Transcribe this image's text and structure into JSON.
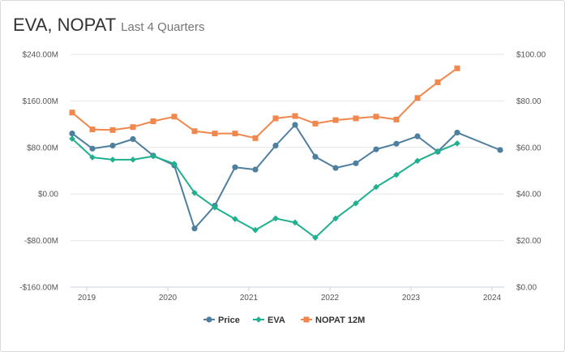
{
  "header": {
    "title": "EVA, NOPAT",
    "subtitle": "Last 4 Quarters"
  },
  "colors": {
    "price": "#4e7f9f",
    "eva": "#1fb08f",
    "nopat": "#f0874d",
    "grid": "#e6e6e6",
    "axis": "#c9d0e0"
  },
  "chart_data": {
    "type": "line",
    "x_axis": {
      "ticks": [
        "2019",
        "2020",
        "2021",
        "2022",
        "2023",
        "2024"
      ],
      "tick_values": [
        2019,
        2020,
        2021,
        2022,
        2023,
        2024
      ],
      "range": [
        2018.8,
        2024.15
      ]
    },
    "y_left": {
      "ticks": [
        "$240.00M",
        "$160.00M",
        "$80.00M",
        "$0.00",
        "-$80.00M",
        "-$160.00M"
      ],
      "tick_values": [
        240,
        160,
        80,
        0,
        -80,
        -160
      ],
      "range": [
        -160,
        240
      ],
      "unit": "$M"
    },
    "y_right": {
      "ticks": [
        "$100.00",
        "$80.00",
        "$60.00",
        "$40.00",
        "$20.00",
        "$0.00"
      ],
      "tick_values": [
        100,
        80,
        60,
        40,
        20,
        0
      ],
      "range": [
        0,
        100
      ]
    },
    "grid": true,
    "legend_position": "bottom-center",
    "series": [
      {
        "name": "Price",
        "key": "price",
        "axis": "right",
        "marker": "circle",
        "x": [
          2018.82,
          2019.07,
          2019.32,
          2019.57,
          2019.82,
          2020.08,
          2020.33,
          2020.58,
          2020.83,
          2021.08,
          2021.33,
          2021.57,
          2021.82,
          2022.07,
          2022.32,
          2022.57,
          2022.82,
          2023.08,
          2023.33,
          2023.57,
          2024.1
        ],
        "values": [
          66.0,
          59.5,
          60.8,
          63.6,
          56.5,
          52.3,
          25.2,
          35.0,
          51.5,
          50.5,
          60.8,
          69.7,
          56.0,
          51.2,
          53.2,
          59.2,
          61.6,
          64.8,
          58.2,
          66.4,
          58.9
        ]
      },
      {
        "name": "EVA",
        "key": "eva",
        "axis": "left",
        "marker": "diamond",
        "x": [
          2018.82,
          2019.07,
          2019.32,
          2019.57,
          2019.82,
          2020.08,
          2020.33,
          2020.58,
          2020.83,
          2021.08,
          2021.33,
          2021.57,
          2021.82,
          2022.07,
          2022.32,
          2022.57,
          2022.82,
          2023.08,
          2023.33,
          2023.57
        ],
        "values": [
          95,
          63,
          59,
          59,
          65,
          52,
          2,
          -23,
          -43,
          -62,
          -42,
          -49,
          -75,
          -42,
          -16,
          12,
          33,
          57,
          73,
          87
        ]
      },
      {
        "name": "NOPAT 12M",
        "key": "nopat",
        "axis": "left",
        "marker": "square",
        "x": [
          2018.82,
          2019.07,
          2019.32,
          2019.57,
          2019.82,
          2020.08,
          2020.33,
          2020.58,
          2020.83,
          2021.08,
          2021.33,
          2021.57,
          2021.82,
          2022.07,
          2022.32,
          2022.57,
          2022.82,
          2023.08,
          2023.33,
          2023.57
        ],
        "values": [
          140,
          111,
          110,
          115,
          125,
          133,
          108,
          104,
          104,
          96,
          130,
          134,
          121,
          127,
          130,
          133,
          128,
          165,
          192,
          216
        ]
      }
    ]
  }
}
